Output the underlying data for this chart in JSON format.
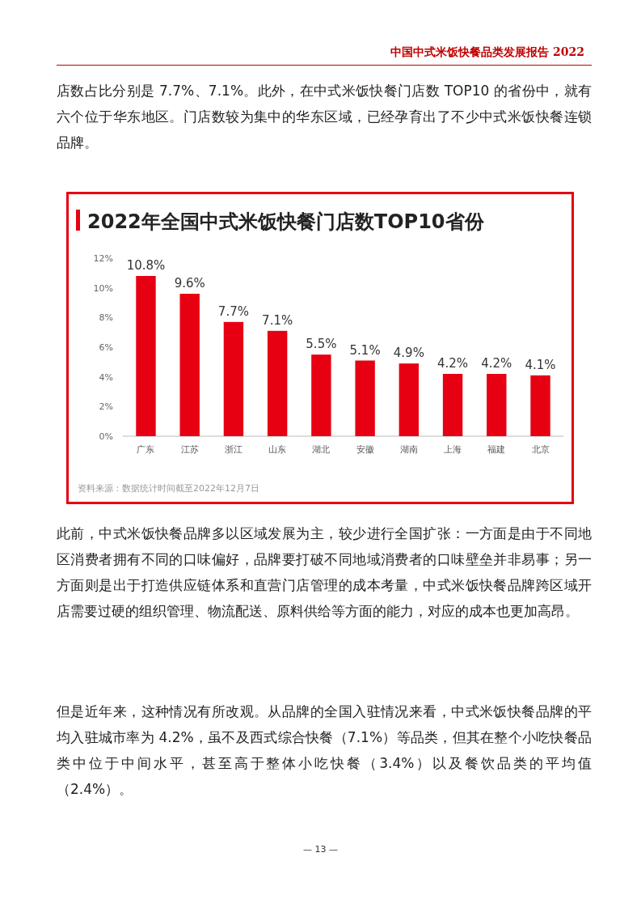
{
  "chart_data": {
    "type": "bar",
    "title": "2022年全国中式米饭快餐门店数TOP10省份",
    "categories": [
      "广东",
      "江苏",
      "浙江",
      "山东",
      "湖北",
      "安徽",
      "湖南",
      "上海",
      "福建",
      "北京"
    ],
    "values": [
      10.8,
      9.6,
      7.7,
      7.1,
      5.5,
      5.1,
      4.9,
      4.2,
      4.2,
      4.1
    ],
    "value_labels": [
      "10.8%",
      "9.6%",
      "7.7%",
      "7.1%",
      "5.5%",
      "5.1%",
      "4.9%",
      "4.2%",
      "4.2%",
      "4.1%"
    ],
    "color": "#e60012",
    "ylim": [
      0,
      12
    ],
    "yticks": [
      {
        "value": 0,
        "label": "0%"
      },
      {
        "value": 2,
        "label": "2%"
      },
      {
        "value": 4,
        "label": "4%"
      },
      {
        "value": 6,
        "label": "6%"
      },
      {
        "value": 8,
        "label": "8%"
      },
      {
        "value": 10,
        "label": "10%"
      },
      {
        "value": 12,
        "label": "12%"
      }
    ],
    "annotations": [
      "中国中式米饭快餐品类发展报告 2022",
      "店数占比分别是 7.7%、7.1%。此外，在中式米饭快餐门店数 TOP10 的省份中，就有六个位于华东地区。门店数较为集中的华东区域，已经孕育出了不少中式米饭快餐连锁品牌。",
      "资料来源：数据统计时间截至2022年12月7日",
      "此前，中式米饭快餐品牌多以区域发展为主，较少进行全国扩张：一方面是由于不同地区消费者拥有不同的口味偏好，品牌要打破不同地域消费者的口味壁垒并非易事；另一方面则是出于打造供应链体系和直营门店管理的成本考量，中式米饭快餐品牌跨区域开店需要过硬的组织管理、物流配送、原料供给等方面的能力，对应的成本也更加高昂。",
      "但是近年来，这种情况有所改观。从品牌的全国入驻情况来看，中式米饭快餐品牌的平均入驻城市率为 4.2%，虽不及西式综合快餐（7.1%）等品类，但其在整个小吃快餐品类中位于中间水平，甚至高于整体小吃快餐（3.4%）以及餐饮品类的平均值（2.4%）。",
      "— 13 —"
    ]
  }
}
